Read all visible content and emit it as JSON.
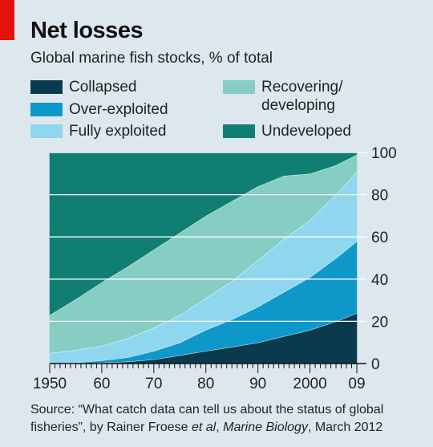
{
  "header": {
    "title": "Net losses",
    "subtitle": "Global marine fish stocks, % of total"
  },
  "source": {
    "prefix": "Source: “What catch data can tell us about the status of global fisheries”, by Rainer Froese ",
    "etal": "et al",
    "mid": ", ",
    "journal": "Marine Biology",
    "suffix": ", March 2012"
  },
  "colors": {
    "background": "#dde8ee",
    "accent": "#e3120b"
  },
  "chart_data": {
    "type": "area",
    "stacked": true,
    "title": "Net losses",
    "subtitle": "Global marine fish stocks, % of total",
    "x": [
      1950,
      1955,
      1960,
      1965,
      1970,
      1975,
      1980,
      1985,
      1990,
      1995,
      2000,
      2005,
      2009
    ],
    "x_tick_labels": [
      {
        "value": 1950,
        "label": "1950"
      },
      {
        "value": 1960,
        "label": "60"
      },
      {
        "value": 1970,
        "label": "70"
      },
      {
        "value": 1980,
        "label": "80"
      },
      {
        "value": 1990,
        "label": "90"
      },
      {
        "value": 2000,
        "label": "2000"
      },
      {
        "value": 2009,
        "label": "09"
      }
    ],
    "y_ticks": [
      0,
      20,
      40,
      60,
      80,
      100
    ],
    "ylim": [
      0,
      100
    ],
    "xlim": [
      1950,
      2009
    ],
    "y_axis_side": "right",
    "grid": true,
    "legend_position": "top",
    "series": [
      {
        "name": "Collapsed",
        "color": "#0b3a4f",
        "values": [
          0,
          0,
          0.5,
          1,
          2,
          4,
          6,
          8,
          10,
          13,
          16,
          20,
          24
        ]
      },
      {
        "name": "Over-exploited",
        "color": "#0e98c9",
        "values": [
          0,
          0.5,
          1,
          2,
          4,
          6,
          10,
          13,
          17,
          21,
          25,
          30,
          34
        ]
      },
      {
        "name": "Fully exploited",
        "color": "#8fd6ef",
        "values": [
          5,
          6,
          7,
          9,
          11,
          13,
          15,
          18,
          22,
          25,
          27,
          30,
          33
        ]
      },
      {
        "name": "Recovering/\ndeveloping",
        "color": "#86cdc4",
        "values": [
          18,
          24,
          30,
          34,
          37,
          39,
          39,
          38,
          35,
          30,
          22,
          14,
          8
        ]
      },
      {
        "name": "Undeveloped",
        "color": "#117e74",
        "values": [
          77,
          69.5,
          61.5,
          54,
          46,
          38,
          30,
          23,
          16,
          11,
          10,
          6,
          1
        ]
      }
    ]
  }
}
